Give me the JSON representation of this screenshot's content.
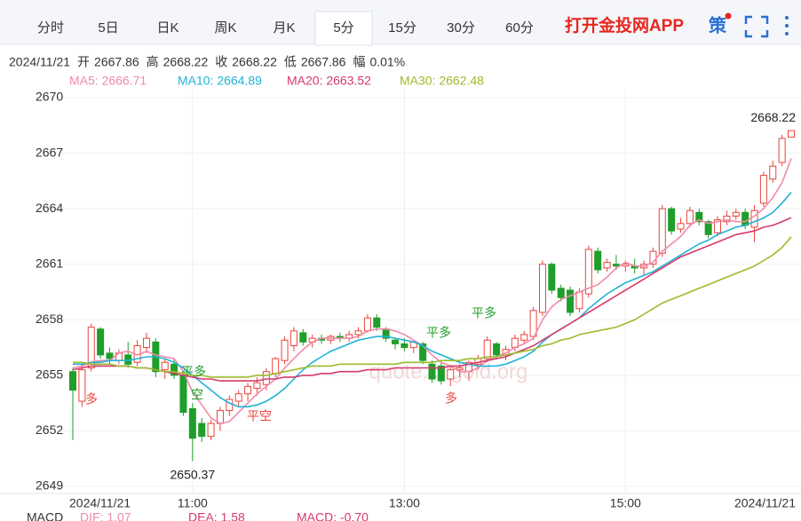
{
  "tabs": [
    "分时",
    "5日",
    "日K",
    "周K",
    "月K",
    "5分",
    "15分",
    "30分",
    "60分"
  ],
  "active_tab": 5,
  "brand": "打开金投网APP",
  "strategy_icon": "策",
  "info": {
    "date": "2024/11/21",
    "items": [
      {
        "label": "开",
        "value": "2667.86"
      },
      {
        "label": "高",
        "value": "2668.22"
      },
      {
        "label": "收",
        "value": "2668.22"
      },
      {
        "label": "低",
        "value": "2667.86"
      },
      {
        "label": "幅",
        "value": "0.01%"
      }
    ]
  },
  "chart_data": {
    "type": "candlestick",
    "watermark": "quote.cngold.org",
    "up_color": "#e8453c",
    "down_color": "#1e9e2a",
    "categories": [
      "2024/11/21",
      null,
      null,
      null,
      null,
      null,
      null,
      null,
      null,
      null,
      null,
      null,
      null,
      "11:00",
      null,
      null,
      null,
      null,
      null,
      null,
      null,
      null,
      null,
      null,
      null,
      null,
      null,
      null,
      null,
      null,
      null,
      null,
      null,
      null,
      null,
      null,
      "13:00",
      null,
      null,
      null,
      null,
      null,
      null,
      null,
      null,
      null,
      null,
      null,
      null,
      null,
      null,
      null,
      null,
      null,
      null,
      null,
      null,
      null,
      null,
      null,
      "15:00",
      null,
      null,
      null,
      null,
      null,
      null,
      null,
      null,
      null,
      null,
      null,
      null,
      null,
      null,
      null,
      null,
      null,
      "2024/11/21"
    ],
    "open": [
      2655.2,
      2653.6,
      2655.4,
      2657.5,
      2656.2,
      2655.8,
      2656.1,
      2655.7,
      2656.5,
      2656.8,
      2655.3,
      2655.6,
      2655.0,
      2653.2,
      2652.4,
      2651.7,
      2652.4,
      2653.1,
      2653.6,
      2654.0,
      2654.3,
      2654.5,
      2655.1,
      2655.8,
      2656.6,
      2657.3,
      2656.8,
      2657.0,
      2656.9,
      2657.1,
      2657.0,
      2657.2,
      2657.4,
      2658.1,
      2657.5,
      2656.9,
      2656.7,
      2656.5,
      2656.7,
      2655.6,
      2655.5,
      2654.8,
      2655.3,
      2655.2,
      2655.6,
      2655.9,
      2656.7,
      2656.1,
      2656.5,
      2656.9,
      2657.1,
      2658.4,
      2661.0,
      2659.7,
      2659.6,
      2658.6,
      2659.4,
      2661.7,
      2660.8,
      2661.0,
      2660.9,
      2660.9,
      2660.8,
      2661.0,
      2661.6,
      2664.0,
      2662.9,
      2663.2,
      2663.8,
      2663.3,
      2662.7,
      2663.3,
      2663.6,
      2663.8,
      2663.0,
      2664.3,
      2665.6,
      2666.5,
      2667.86
    ],
    "high": [
      2655.4,
      2655.6,
      2657.8,
      2657.6,
      2656.5,
      2656.4,
      2656.8,
      2656.9,
      2657.3,
      2657.0,
      2655.9,
      2655.9,
      2655.2,
      2653.5,
      2652.7,
      2652.6,
      2653.3,
      2653.9,
      2654.2,
      2654.6,
      2654.9,
      2655.4,
      2656.0,
      2657.1,
      2657.6,
      2657.5,
      2657.2,
      2657.2,
      2657.2,
      2657.3,
      2657.4,
      2657.6,
      2658.3,
      2658.3,
      2657.6,
      2657.0,
      2657.0,
      2656.9,
      2656.8,
      2655.8,
      2655.7,
      2655.5,
      2655.6,
      2655.8,
      2656.1,
      2657.1,
      2656.8,
      2656.6,
      2657.2,
      2657.4,
      2658.7,
      2661.2,
      2661.1,
      2659.9,
      2659.8,
      2659.7,
      2662.0,
      2661.9,
      2661.3,
      2661.5,
      2661.2,
      2661.3,
      2661.2,
      2661.9,
      2664.2,
      2664.1,
      2663.5,
      2664.1,
      2664.0,
      2663.4,
      2663.6,
      2663.9,
      2664.0,
      2664.0,
      2664.2,
      2666.0,
      2666.6,
      2668.0,
      2668.22
    ],
    "low": [
      2651.5,
      2653.3,
      2655.2,
      2655.9,
      2655.6,
      2655.6,
      2655.4,
      2655.5,
      2656.2,
      2654.9,
      2654.8,
      2654.8,
      2652.8,
      2650.37,
      2651.4,
      2651.5,
      2652.0,
      2652.8,
      2653.3,
      2653.6,
      2653.9,
      2654.2,
      2654.9,
      2655.6,
      2656.3,
      2656.6,
      2656.5,
      2656.7,
      2656.7,
      2656.8,
      2656.8,
      2657.0,
      2657.3,
      2657.4,
      2656.8,
      2656.4,
      2656.3,
      2656.2,
      2655.6,
      2654.6,
      2654.5,
      2654.4,
      2654.9,
      2654.7,
      2655.3,
      2655.7,
      2655.9,
      2655.8,
      2656.3,
      2656.7,
      2656.9,
      2658.2,
      2659.4,
      2659.0,
      2658.2,
      2658.4,
      2659.2,
      2660.5,
      2660.6,
      2660.7,
      2660.6,
      2660.5,
      2660.4,
      2660.8,
      2661.4,
      2662.6,
      2662.7,
      2663.0,
      2663.1,
      2662.4,
      2662.5,
      2663.1,
      2663.4,
      2662.9,
      2662.2,
      2664.1,
      2665.4,
      2666.3,
      2667.86
    ],
    "close": [
      2654.2,
      2655.3,
      2657.6,
      2656.1,
      2655.9,
      2656.2,
      2655.6,
      2656.6,
      2657.0,
      2655.2,
      2655.7,
      2655.0,
      2653.0,
      2651.6,
      2651.7,
      2652.4,
      2653.1,
      2653.7,
      2654.0,
      2654.4,
      2654.6,
      2655.2,
      2655.9,
      2656.9,
      2657.4,
      2656.8,
      2657.0,
      2656.9,
      2657.1,
      2657.0,
      2657.2,
      2657.4,
      2658.1,
      2657.6,
      2657.0,
      2656.7,
      2656.5,
      2656.8,
      2655.8,
      2654.8,
      2654.7,
      2655.3,
      2655.4,
      2655.7,
      2655.9,
      2656.9,
      2656.1,
      2656.4,
      2657.0,
      2657.2,
      2658.5,
      2661.0,
      2659.6,
      2659.2,
      2658.4,
      2659.5,
      2661.8,
      2660.7,
      2661.1,
      2660.9,
      2661.0,
      2660.8,
      2661.0,
      2661.7,
      2664.0,
      2662.8,
      2663.2,
      2663.9,
      2663.3,
      2662.6,
      2663.4,
      2663.6,
      2663.8,
      2663.1,
      2663.9,
      2665.8,
      2666.3,
      2667.8,
      2668.22
    ],
    "series": [
      {
        "name": "MA5: 2666.71",
        "color": "#f08aa8",
        "values": [
          2655.4,
          2655.5,
          2655.7,
          2655.8,
          2655.8,
          2656.2,
          2656.3,
          2656.1,
          2656.3,
          2656.1,
          2656.0,
          2655.9,
          2655.2,
          2654.1,
          2653.4,
          2652.7,
          2652.4,
          2652.5,
          2653.0,
          2653.5,
          2654.0,
          2654.4,
          2654.8,
          2655.4,
          2655.9,
          2656.4,
          2656.8,
          2657.0,
          2657.0,
          2657.0,
          2657.0,
          2657.1,
          2657.4,
          2657.5,
          2657.5,
          2657.4,
          2657.2,
          2656.9,
          2656.6,
          2656.1,
          2655.7,
          2655.5,
          2655.2,
          2655.2,
          2655.4,
          2655.8,
          2656.0,
          2656.2,
          2656.5,
          2656.7,
          2657.0,
          2658.0,
          2658.7,
          2659.1,
          2659.3,
          2659.5,
          2659.7,
          2659.9,
          2660.3,
          2660.8,
          2661.1,
          2660.9,
          2660.9,
          2661.1,
          2661.7,
          2662.1,
          2662.5,
          2663.1,
          2663.4,
          2663.2,
          2663.3,
          2663.4,
          2663.3,
          2663.3,
          2663.6,
          2664.0,
          2664.6,
          2665.4,
          2666.71
        ]
      },
      {
        "name": "MA10: 2664.89",
        "color": "#1fb3d6",
        "values": [
          2655.6,
          2655.6,
          2655.7,
          2655.7,
          2655.8,
          2655.8,
          2655.8,
          2655.9,
          2656.0,
          2656.0,
          2655.9,
          2655.7,
          2655.4,
          2655.0,
          2654.6,
          2654.2,
          2653.8,
          2653.5,
          2653.3,
          2653.3,
          2653.4,
          2653.6,
          2653.9,
          2654.3,
          2654.8,
          2655.3,
          2655.7,
          2656.0,
          2656.3,
          2656.5,
          2656.7,
          2656.9,
          2657.0,
          2657.1,
          2657.1,
          2657.0,
          2656.9,
          2656.8,
          2656.6,
          2656.3,
          2656.1,
          2655.9,
          2655.7,
          2655.6,
          2655.5,
          2655.5,
          2655.5,
          2655.6,
          2655.8,
          2656.0,
          2656.3,
          2656.8,
          2657.2,
          2657.5,
          2657.8,
          2658.1,
          2658.6,
          2659.0,
          2659.4,
          2659.7,
          2660.0,
          2660.2,
          2660.4,
          2660.6,
          2660.9,
          2661.2,
          2661.5,
          2661.8,
          2662.1,
          2662.3,
          2662.6,
          2662.8,
          2663.0,
          2663.1,
          2663.3,
          2663.5,
          2663.8,
          2664.3,
          2664.89
        ]
      },
      {
        "name": "MA20: 2663.52",
        "color": "#d63a6a",
        "values": [
          2655.3,
          2655.4,
          2655.5,
          2655.5,
          2655.5,
          2655.5,
          2655.5,
          2655.4,
          2655.4,
          2655.3,
          2655.2,
          2655.1,
          2655.0,
          2654.9,
          2654.8,
          2654.8,
          2654.7,
          2654.7,
          2654.7,
          2654.7,
          2654.7,
          2654.8,
          2654.8,
          2654.9,
          2654.9,
          2655.0,
          2655.0,
          2655.1,
          2655.1,
          2655.2,
          2655.2,
          2655.2,
          2655.3,
          2655.3,
          2655.3,
          2655.4,
          2655.4,
          2655.4,
          2655.4,
          2655.4,
          2655.4,
          2655.5,
          2655.5,
          2655.6,
          2655.7,
          2655.8,
          2655.9,
          2656.0,
          2656.2,
          2656.4,
          2656.6,
          2656.9,
          2657.2,
          2657.5,
          2657.8,
          2658.1,
          2658.4,
          2658.7,
          2659.0,
          2659.3,
          2659.6,
          2659.9,
          2660.2,
          2660.5,
          2660.8,
          2661.1,
          2661.4,
          2661.6,
          2661.8,
          2662.0,
          2662.2,
          2662.4,
          2662.6,
          2662.7,
          2662.8,
          2663.0,
          2663.1,
          2663.3,
          2663.52
        ]
      },
      {
        "name": "MA30: 2662.48",
        "color": "#9cbb2c",
        "values": [
          2655.7,
          2655.7,
          2655.6,
          2655.6,
          2655.6,
          2655.5,
          2655.5,
          2655.4,
          2655.4,
          2655.3,
          2655.2,
          2655.2,
          2655.1,
          2655.0,
          2655.0,
          2654.9,
          2654.9,
          2654.9,
          2654.9,
          2654.9,
          2655.0,
          2655.0,
          2655.1,
          2655.2,
          2655.3,
          2655.4,
          2655.5,
          2655.5,
          2655.5,
          2655.6,
          2655.6,
          2655.6,
          2655.6,
          2655.6,
          2655.6,
          2655.6,
          2655.7,
          2655.7,
          2655.7,
          2655.7,
          2655.8,
          2655.8,
          2655.8,
          2655.9,
          2655.9,
          2656.0,
          2656.0,
          2656.1,
          2656.2,
          2656.3,
          2656.4,
          2656.6,
          2656.7,
          2656.9,
          2657.0,
          2657.2,
          2657.3,
          2657.4,
          2657.5,
          2657.6,
          2657.8,
          2658.0,
          2658.3,
          2658.6,
          2658.9,
          2659.1,
          2659.3,
          2659.5,
          2659.7,
          2659.9,
          2660.1,
          2660.3,
          2660.5,
          2660.7,
          2660.9,
          2661.2,
          2661.5,
          2661.9,
          2662.48
        ]
      }
    ],
    "signals": [
      "多",
      "平多",
      "空",
      "平空",
      "平多",
      "多",
      "平多"
    ],
    "ylim": [
      2649,
      2670
    ],
    "yticks": [
      2649,
      2652,
      2655,
      2658,
      2661,
      2664,
      2667,
      2670
    ],
    "grid": true,
    "macd_legend": [
      "MACD",
      "DIF: 1.07",
      "DEA: 1.58",
      "MACD: -0.70"
    ]
  }
}
